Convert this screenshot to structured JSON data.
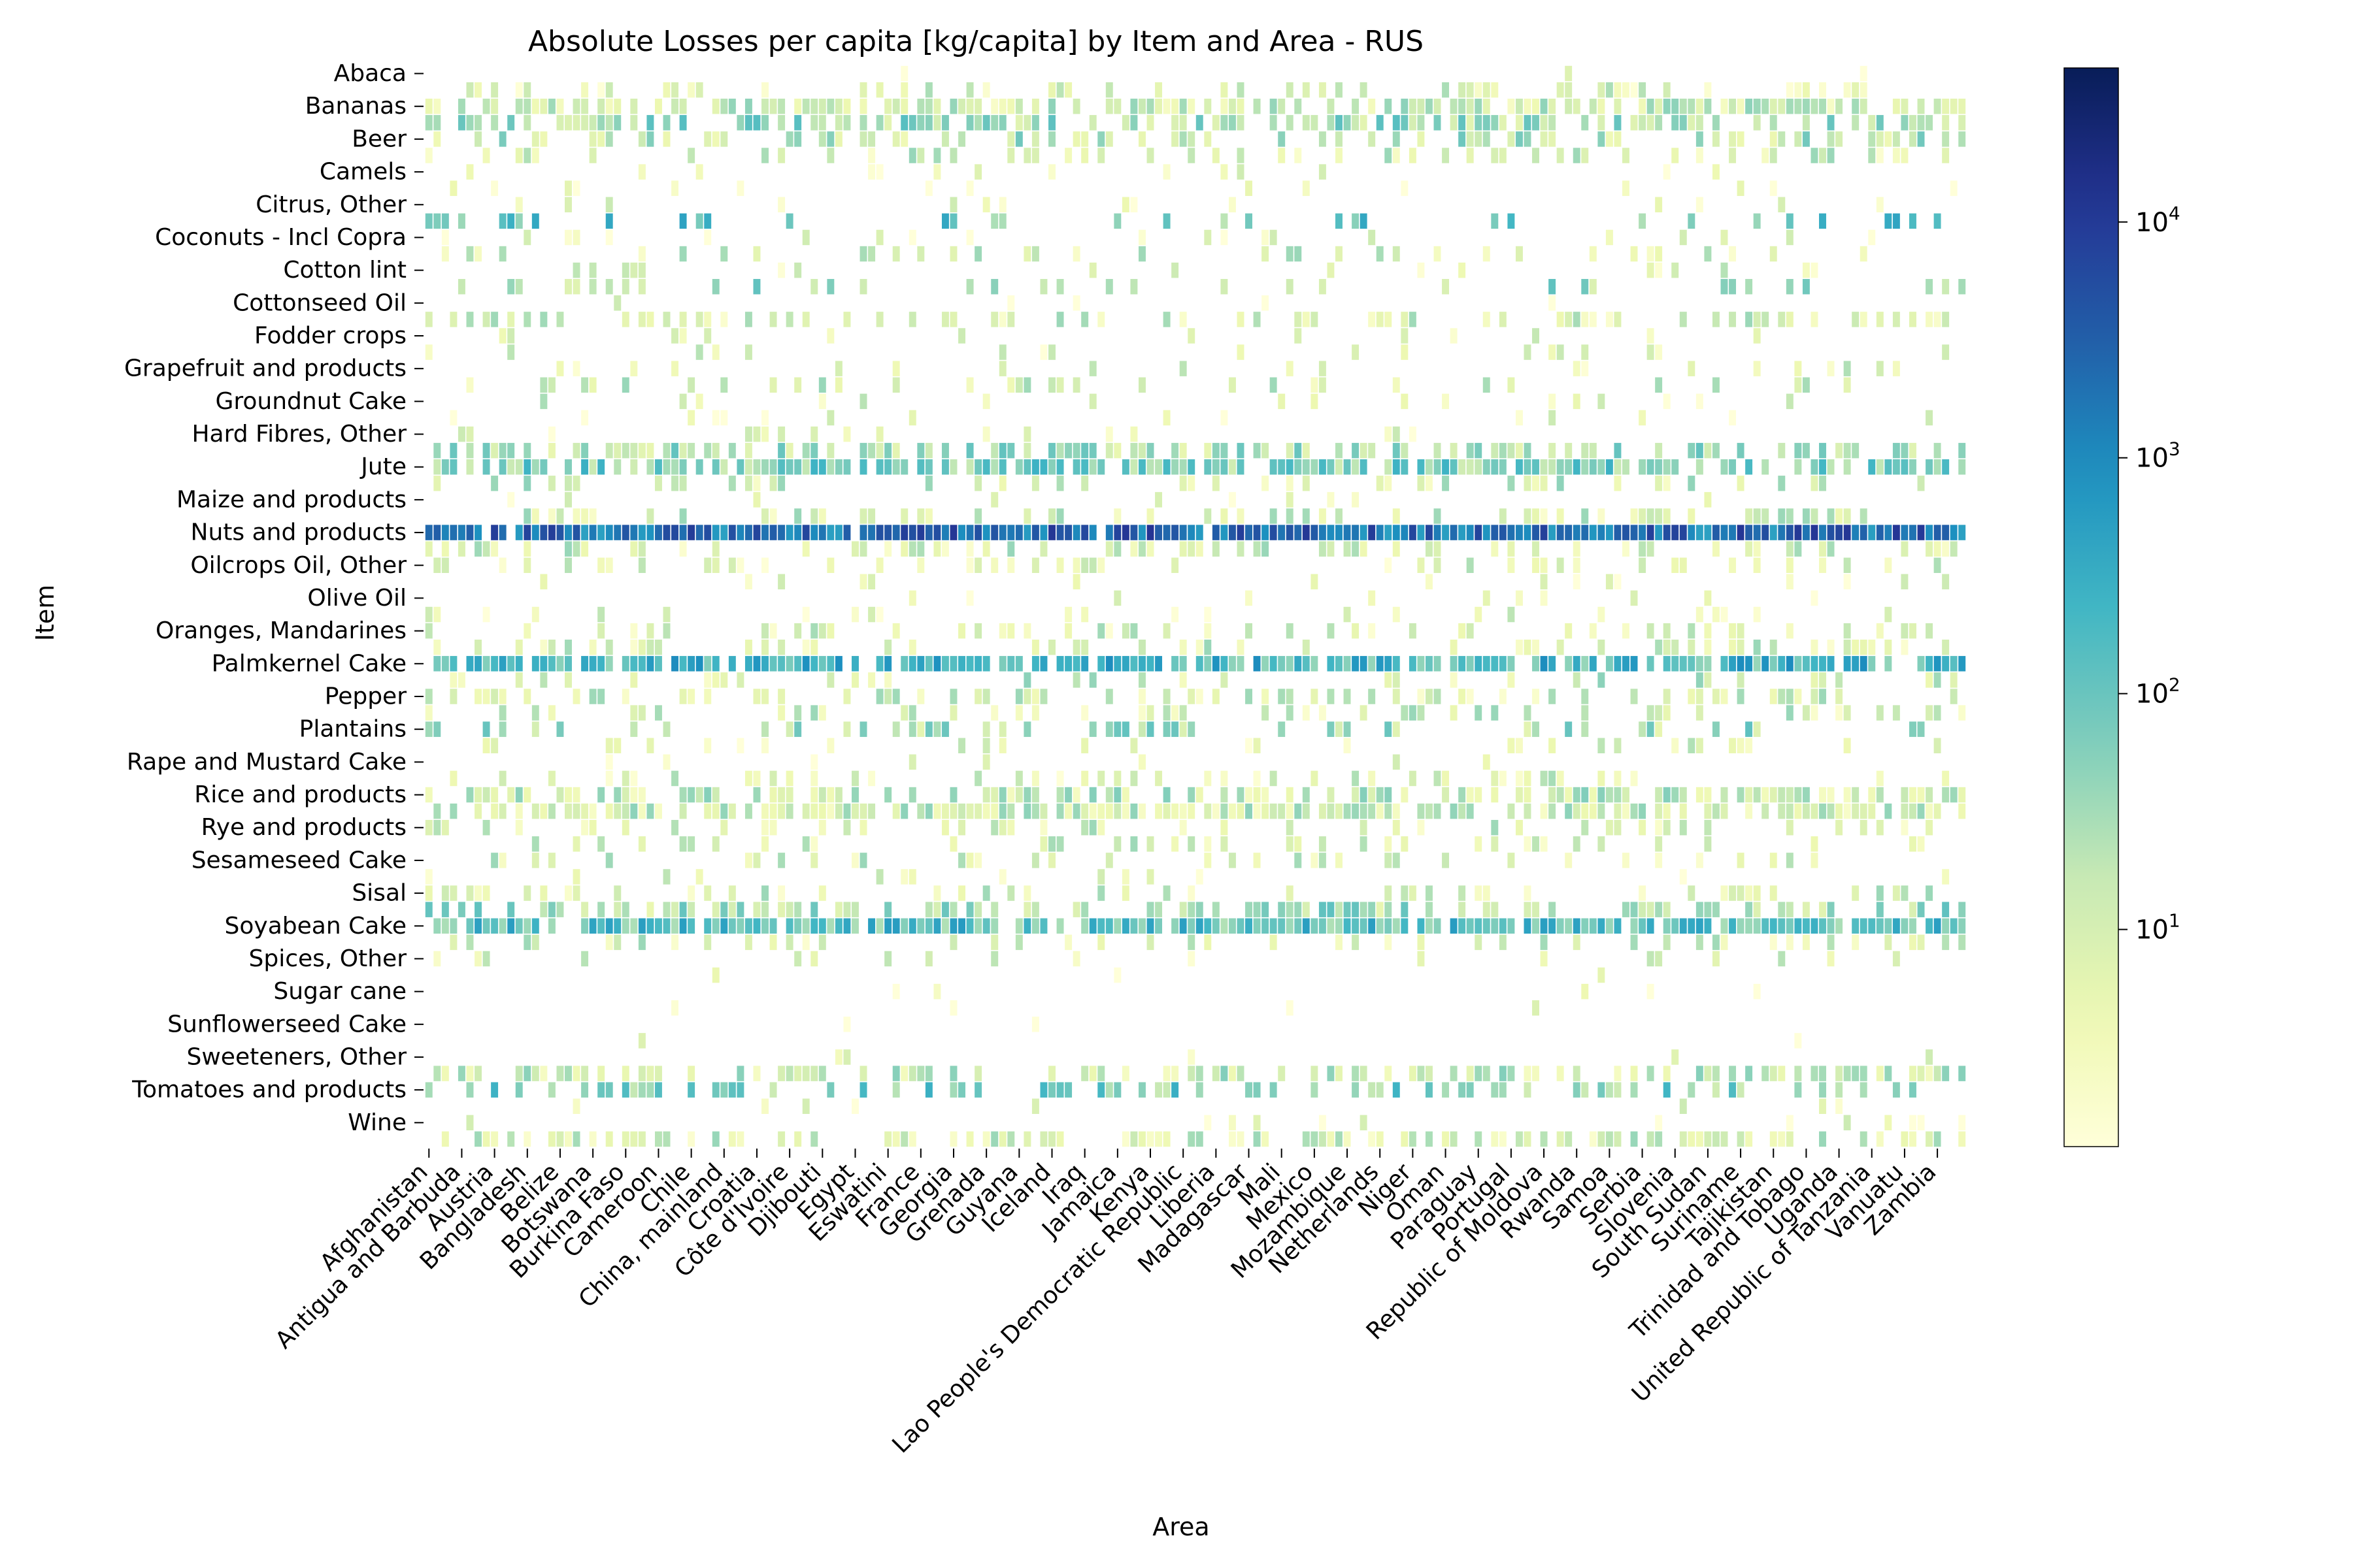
{
  "chart_data": {
    "type": "heatmap",
    "title": "Absolute Losses per capita [kg/capita] by Item and Area - RUS",
    "xlabel": "Area",
    "ylabel": "Item",
    "y_tick_labels": [
      "Abaca",
      "Bananas",
      "Beer",
      "Camels",
      "Citrus, Other",
      "Coconuts - Incl Copra",
      "Cotton lint",
      "Cottonseed Oil",
      "Fodder crops",
      "Grapefruit and products",
      "Groundnut Cake",
      "Hard Fibres, Other",
      "Jute",
      "Maize and products",
      "Nuts and products",
      "Oilcrops Oil, Other",
      "Olive Oil",
      "Oranges, Mandarines",
      "Palmkernel Cake",
      "Pepper",
      "Plantains",
      "Rape and Mustard Cake",
      "Rice and products",
      "Rye and products",
      "Sesameseed Cake",
      "Sisal",
      "Soyabean Cake",
      "Spices, Other",
      "Sugar cane",
      "Sunflowerseed Cake",
      "Sweeteners, Other",
      "Tomatoes and products",
      "Wine"
    ],
    "x_tick_labels": [
      "Afghanistan",
      "Antigua and Barbuda",
      "Austria",
      "Bangladesh",
      "Belize",
      "Botswana",
      "Burkina Faso",
      "Cameroon",
      "Chile",
      "China, mainland",
      "Croatia",
      "Côte d'Ivoire",
      "Djibouti",
      "Egypt",
      "Eswatini",
      "France",
      "Georgia",
      "Grenada",
      "Guyana",
      "Iceland",
      "Iraq",
      "Jamaica",
      "Kenya",
      "Lao People's Democratic Republic",
      "Liberia",
      "Madagascar",
      "Mali",
      "Mexico",
      "Mozambique",
      "Netherlands",
      "Niger",
      "Oman",
      "Paraguay",
      "Portugal",
      "Republic of Moldova",
      "Rwanda",
      "Samoa",
      "Serbia",
      "Slovenia",
      "South Sudan",
      "Suriname",
      "Tajikistan",
      "Trinidad and Tobago",
      "Uganda",
      "United Republic of Tanzania",
      "Vanuatu",
      "Zambia"
    ],
    "n_areas": 188,
    "n_items": 66,
    "color_scale": "log",
    "colormap": "YlGnBu",
    "colormap_stops": [
      "#ffffd9",
      "#edf8b1",
      "#c7e9b4",
      "#7fcdbb",
      "#41b6c4",
      "#1d91c0",
      "#225ea8",
      "#253494",
      "#081d58"
    ],
    "vlim": [
      1.2,
      45000
    ],
    "colorbar_ticks": [
      {
        "value": 10,
        "base": "10",
        "exp": "1"
      },
      {
        "value": 100,
        "base": "10",
        "exp": "2"
      },
      {
        "value": 1000,
        "base": "10",
        "exp": "3"
      },
      {
        "value": 10000,
        "base": "10",
        "exp": "4"
      }
    ],
    "row_profile": [
      {
        "row": 0,
        "density": 0.03,
        "magnitude": 4
      },
      {
        "row": 1,
        "density": 0.22,
        "magnitude": 6
      },
      {
        "row": 2,
        "density": 0.72,
        "magnitude": 10
      },
      {
        "row": 3,
        "density": 0.62,
        "magnitude": 30
      },
      {
        "row": 4,
        "density": 0.42,
        "magnitude": 18
      },
      {
        "row": 5,
        "density": 0.3,
        "magnitude": 8
      },
      {
        "row": 6,
        "density": 0.05,
        "magnitude": 3
      },
      {
        "row": 7,
        "density": 0.08,
        "magnitude": 3
      },
      {
        "row": 8,
        "density": 0.05,
        "magnitude": 3
      },
      {
        "row": 9,
        "density": 0.22,
        "magnitude": 100
      },
      {
        "row": 10,
        "density": 0.06,
        "magnitude": 3
      },
      {
        "row": 11,
        "density": 0.18,
        "magnitude": 8
      },
      {
        "row": 12,
        "density": 0.1,
        "magnitude": 5
      },
      {
        "row": 13,
        "density": 0.14,
        "magnitude": 30
      },
      {
        "row": 14,
        "density": 0.04,
        "magnitude": 3
      },
      {
        "row": 15,
        "density": 0.32,
        "magnitude": 8
      },
      {
        "row": 16,
        "density": 0.12,
        "magnitude": 4
      },
      {
        "row": 17,
        "density": 0.12,
        "magnitude": 5
      },
      {
        "row": 18,
        "density": 0.12,
        "magnitude": 6
      },
      {
        "row": 19,
        "density": 0.16,
        "magnitude": 10
      },
      {
        "row": 20,
        "density": 0.12,
        "magnitude": 6
      },
      {
        "row": 21,
        "density": 0.04,
        "magnitude": 3
      },
      {
        "row": 22,
        "density": 0.06,
        "magnitude": 4
      },
      {
        "row": 23,
        "density": 0.55,
        "magnitude": 25
      },
      {
        "row": 24,
        "density": 0.75,
        "magnitude": 60
      },
      {
        "row": 25,
        "density": 0.25,
        "magnitude": 10
      },
      {
        "row": 26,
        "density": 0.05,
        "magnitude": 3
      },
      {
        "row": 27,
        "density": 0.35,
        "magnitude": 8
      },
      {
        "row": 28,
        "density": 0.97,
        "magnitude": 2500
      },
      {
        "row": 29,
        "density": 0.35,
        "magnitude": 8
      },
      {
        "row": 30,
        "density": 0.22,
        "magnitude": 6
      },
      {
        "row": 31,
        "density": 0.08,
        "magnitude": 3
      },
      {
        "row": 32,
        "density": 0.06,
        "magnitude": 3
      },
      {
        "row": 33,
        "density": 0.12,
        "magnitude": 5
      },
      {
        "row": 34,
        "density": 0.25,
        "magnitude": 7
      },
      {
        "row": 35,
        "density": 0.3,
        "magnitude": 8
      },
      {
        "row": 36,
        "density": 0.86,
        "magnitude": 200
      },
      {
        "row": 37,
        "density": 0.2,
        "magnitude": 10
      },
      {
        "row": 38,
        "density": 0.4,
        "magnitude": 8
      },
      {
        "row": 39,
        "density": 0.28,
        "magnitude": 8
      },
      {
        "row": 40,
        "density": 0.25,
        "magnitude": 25
      },
      {
        "row": 41,
        "density": 0.12,
        "magnitude": 5
      },
      {
        "row": 42,
        "density": 0.05,
        "magnitude": 3
      },
      {
        "row": 43,
        "density": 0.2,
        "magnitude": 6
      },
      {
        "row": 44,
        "density": 0.6,
        "magnitude": 12
      },
      {
        "row": 45,
        "density": 0.72,
        "magnitude": 10
      },
      {
        "row": 46,
        "density": 0.25,
        "magnitude": 8
      },
      {
        "row": 47,
        "density": 0.2,
        "magnitude": 8
      },
      {
        "row": 48,
        "density": 0.2,
        "magnitude": 8
      },
      {
        "row": 49,
        "density": 0.12,
        "magnitude": 5
      },
      {
        "row": 50,
        "density": 0.3,
        "magnitude": 8
      },
      {
        "row": 51,
        "density": 0.42,
        "magnitude": 25
      },
      {
        "row": 52,
        "density": 0.85,
        "magnitude": 120
      },
      {
        "row": 53,
        "density": 0.2,
        "magnitude": 8
      },
      {
        "row": 54,
        "density": 0.1,
        "magnitude": 5
      },
      {
        "row": 55,
        "density": 0.02,
        "magnitude": 3
      },
      {
        "row": 56,
        "density": 0.03,
        "magnitude": 3
      },
      {
        "row": 57,
        "density": 0.02,
        "magnitude": 3
      },
      {
        "row": 58,
        "density": 0.02,
        "magnitude": 3
      },
      {
        "row": 59,
        "density": 0.02,
        "magnitude": 3
      },
      {
        "row": 60,
        "density": 0.04,
        "magnitude": 3
      },
      {
        "row": 61,
        "density": 0.55,
        "magnitude": 12
      },
      {
        "row": 62,
        "density": 0.38,
        "magnitude": 60
      },
      {
        "row": 63,
        "density": 0.06,
        "magnitude": 3
      },
      {
        "row": 64,
        "density": 0.05,
        "magnitude": 3
      },
      {
        "row": 65,
        "density": 0.45,
        "magnitude": 8
      }
    ]
  }
}
